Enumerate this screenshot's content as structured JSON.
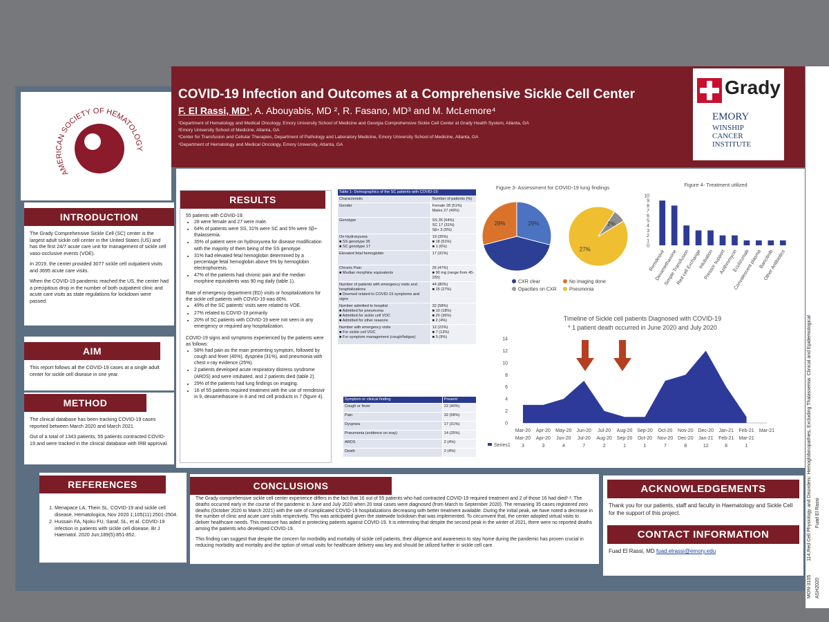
{
  "header": {
    "title": "COVID-19 Infection and Outcomes at a Comprehensive Sickle Cell Center",
    "lead_author": "F. El Rassi, MD¹",
    "coauthors": ", A. Abouyabis, MD ², R. Fasano, MD³ and M. McLemore⁴",
    "affiliations": [
      "¹Department of Hematology and Medical Oncology, Emory University School of Medicine and Georgia Comprehensive Sickle Cell Center at Grady Health System, Atlanta, GA",
      "²Emory University School of Medicine, Atlanta, GA",
      "³Center for Transfusion and Cellular Therapies, Department of Pathology and Laboratory Medicine, Emory University School of Medicine, Atlanta, GA",
      "⁴Department of Hematology and Medical Oncology, Emory University, Atlanta, GA"
    ]
  },
  "logos": {
    "society": "AMERICAN SOCIETY OF HEMATOLOGY",
    "grady": "Grady",
    "emory": "EMORY",
    "winship": "WINSHIP\nCANCER\nINSTITUTE"
  },
  "introduction": {
    "heading": "INTRODUCTION",
    "paragraphs": [
      "The Grady Comprehensive Sickle Cell (SC) center is the largest adult sickle cell center in the United States (US) and has the first 24/7 acute care unit for management of sickle cell vaso-occlusive events (VOE).",
      "In 2019, the center provided 3077 sickle cell outpatient visits and 3695 acute care visits.",
      "When the COVID-19 pandemic reached the US, the center had a precipitous drop in the number of both outpatient clinic and acute care visits as state regulations for lockdown were passed."
    ]
  },
  "aim": {
    "heading": "AIM",
    "paragraphs": [
      "This report follows all the COVID-19 cases at a single adult center for sickle cell disease in one year."
    ]
  },
  "method": {
    "heading": "METHOD",
    "paragraphs": [
      "The clinical database has been tracking COVID-19 cases reported between March 2020 and March 2021.",
      "Out of a total of 1343 patients, 55 patients contracted COVID-19 and were tracked in the clinical database with IRB approval."
    ]
  },
  "references": {
    "heading": "REFERENCES",
    "items": [
      "Menapace LA, Thein SL. COVID-19 and sickle cell disease. Hematologica, Nov 2020 1;105(11):2501-2504.",
      "Hussain FA, Njoku FU, Saraf, SL, et al. COVID-19 infection in patients with sickle cell disease. Br J Haematol. 2020 Jun;189(5):851-852."
    ]
  },
  "results": {
    "heading": "RESULTS",
    "blocks": [
      {
        "lead": "55 patients with COVID-19:",
        "bullets": [
          "28 were female and 27 were male.",
          "64% of patients were SS, 31% were SC and 5% were Sβ+ thalassemia.",
          "35% of patient were on hydroxyurea for disease modification with the majority of them being of the SS genotype",
          "31% had elevated fetal hemoglobin determined by a percentage fetal hemoglobin above 5% by hemoglobin electrophoresis.",
          "47% of the patients had chronic pain and the median morphine equivalents was 90 mg daily (table 1)."
        ]
      },
      {
        "lead": "Rate of emergency department (ED) visits or hospitalizations for the sickle cell patients with COVID-19 was 80%.",
        "bullets": [
          "49% of the SC patients' visits were related to VOE.",
          "27% related to COVID-19 primarily",
          "20% of SC patients with COVID-19 were not seen in any emergency or required any hospitalization."
        ]
      },
      {
        "lead": "COVID-19 signs and symptoms experienced by the patients were as follows:",
        "bullets": [
          "58% had pain as the main presenting symptom, followed by cough and fever (40%), dyspnea (31%), and pneumonia with chest x-ray evidence (25%).",
          "2 patients developed acute respiratory distress syndrome (ARDS) and were intubated, and 2 patients died (table 2).",
          "29% of the patients had lung findings on imaging.",
          "16 of 55 patients required treatment with the use of remdesivir in 9, dexamethasone in 8 and red cell products in 7 (figure 4)."
        ]
      }
    ]
  },
  "table1": {
    "title": "Table 1- Demographics of the SC patients with COVID-19:",
    "header": [
      "Characteristic",
      "Number of patients (%)"
    ],
    "rows": [
      [
        "Gender",
        "Female 28 (51%)\nMales 27 (49%)"
      ],
      [
        "Genotype",
        "SS 35 (64%)\nSC 17 (31%)\nSβ+ 3 (5%)"
      ],
      [
        "On Hydroxyurea\n■ SS genotype 35\n■ SC genotype 17",
        "19 (35%)\n■ 18 (51%)\n■ 1 (6%)"
      ],
      [
        "Elevated fetal hemoglobin",
        "17 (31%)"
      ],
      [
        "Chronic Pain\n■ Median morphine equivalents",
        "26 (47%)\n■ 90 mg (range from 45-255)"
      ],
      [
        "Number of patients with emergency visits and hospitalizations\n■ Deemed related to COVID-19 symptoms and signs",
        "44 (80%)\n■ 15 (27%)"
      ],
      [
        "Number admitted to hospital\n■ Admitted for pneumonia\n■ Admitted for sickle cell VOC\n■ Admitted for other reasons",
        "32 (58%)\n■ 10 (18%)\n■ 20 (36%)\n■ 2 (4%)"
      ],
      [
        "Number with emergency visits\n■ For sickle cell VOC\n■ For symptom management (cough/fatigue)",
        "12 (22%)\n■ 7 (13%)\n■ 5 (9%)"
      ]
    ]
  },
  "table2": {
    "header": [
      "Symptom or clinical finding",
      "Present"
    ],
    "rows": [
      [
        "Cough or fever",
        "22 (40%)"
      ],
      [
        "Pain",
        "32 (58%)"
      ],
      [
        "Dyspnea",
        "17 (31%)"
      ],
      [
        "Pneumonia (evidence on xray)",
        "14 (25%)"
      ],
      [
        "ARDS",
        "2 (4%)"
      ],
      [
        "Death",
        "2 (4%)"
      ]
    ]
  },
  "chart_data": [
    {
      "type": "pie",
      "title": "Figure 3- Assessment for COVID-19 lung findings",
      "pies": [
        {
          "values": [
            29,
            42,
            29
          ],
          "value_labels": [
            "29%",
            null,
            "29%"
          ],
          "colors": [
            "#4b73c0",
            "#2c3f95",
            "#d9732b"
          ]
        },
        {
          "values": [
            27,
            2
          ],
          "value_labels": [
            "27%",
            "2%"
          ],
          "colors": [
            "#f0be31",
            "#8e8e8e"
          ]
        }
      ],
      "legend": [
        {
          "name": "CXR clear",
          "color": "#2c3f95"
        },
        {
          "name": "No imaging done",
          "color": "#d9732b"
        },
        {
          "name": "Opacities on CXR",
          "color": "#9a9a9a"
        },
        {
          "name": "Pneumonia",
          "color": "#f0be31"
        }
      ]
    },
    {
      "type": "bar",
      "title": "Figure 4- Treatment utilized",
      "categories": [
        "Remdesivir",
        "Dexamethasone",
        "Simple Transfusion",
        "Red cell Exchange",
        "Intubation",
        "Pressor support",
        "Azithromycin",
        "Eculizumab",
        "Convalescent plasma",
        "Baricitinib",
        "Other Antibiotics"
      ],
      "values": [
        9,
        8,
        4,
        3,
        3,
        2,
        2,
        1,
        1,
        1,
        1
      ],
      "color": "#2e3b96",
      "ylim": [
        0,
        10
      ],
      "yticks": [
        0,
        1,
        2,
        3,
        4,
        5,
        6,
        7,
        8,
        9,
        10
      ]
    },
    {
      "type": "area",
      "title": "Timeline of Sickle cell patients Diagnosed with COVID-19",
      "subtitle": "* 1 patient death occurred in June 2020 and July 2020",
      "axis_labels": [
        "Mar-20",
        "Apr-20",
        "May-20",
        "Jun-20",
        "Jul-20",
        "Aug-20",
        "Sep-20",
        "Oct-20",
        "Nov-20",
        "Dec-20",
        "Jan-21",
        "Feb-21",
        "Mar-21"
      ],
      "categories": [
        "Mar-20",
        "Apr-20",
        "Jun-20",
        "Jul-20",
        "Aug-20",
        "Sep-20",
        "Oct-20",
        "Nov-20",
        "Dec-20",
        "Jan-21",
        "Feb-21",
        "Mar-21"
      ],
      "series": [
        {
          "name": "Series1",
          "color": "#2d3a9a",
          "values": [
            3,
            3,
            4,
            7,
            2,
            1,
            1,
            7,
            8,
            12,
            6,
            1
          ]
        }
      ],
      "ylim": [
        0,
        14
      ],
      "yticks": [
        0,
        2,
        4,
        6,
        8,
        10,
        12,
        14
      ]
    }
  ],
  "conclusions": {
    "heading": "CONCLUSIONS",
    "paragraphs": [
      "The Grady comprehensive sickle cell center experience differs in the fact that 16 out of 55 patients who had contracted COVID-19 required treatment and 2 of those 16 had died¹·². The deaths occurred early in the course of the pandemic in June and July 2020 when 20 total cases were diagnosed (from March to September 2020). The remaining 35 cases registered zero deaths (October 2020 to March 2021) with the rate of complicated COVID-19 hospitalizations decreasing with better treatment available. During the initial peak, we have noted a decrease in the number of clinic and acute care visits respectively. This was anticipated given the statewide lockdown that was implemented. To circumvent that, the center adopted virtual visits to deliver healthcare needs. This measure has aided in protecting patients against COVID-19. It is interesting that despite the second peak in the winter of 2021, there were no reported deaths among the patients who developed COVID-19.",
      "This finding can suggest that despite the concern for morbidity and mortality of sickle cell patients, their diligence and awareness to stay home during the pandemic has proven crucial in reducing morbidity and mortality and the option of virtual visits for healthcare delivery was key and should be utilized further in sickle cell care."
    ]
  },
  "acknowledgements": {
    "heading": "ACKNOWLEDGEMENTS",
    "text": "Thank you for our patients, staff and faculty in Haematology and Sickle Cell for the support of this project."
  },
  "contact": {
    "heading": "CONTACT INFORMATION",
    "name": "Fuad El Rassi, MD",
    "email": "fuad.elrassi@emory.edu"
  },
  "side_label": {
    "category": "114.Red Cell Physiology and Disorders: Hemoglobinopathies, Excluding Thalassemia: Clinical and Epidemiological",
    "presenter": "Fuad El Rassi",
    "board": "MON-3105",
    "meeting": "ASH2020"
  }
}
